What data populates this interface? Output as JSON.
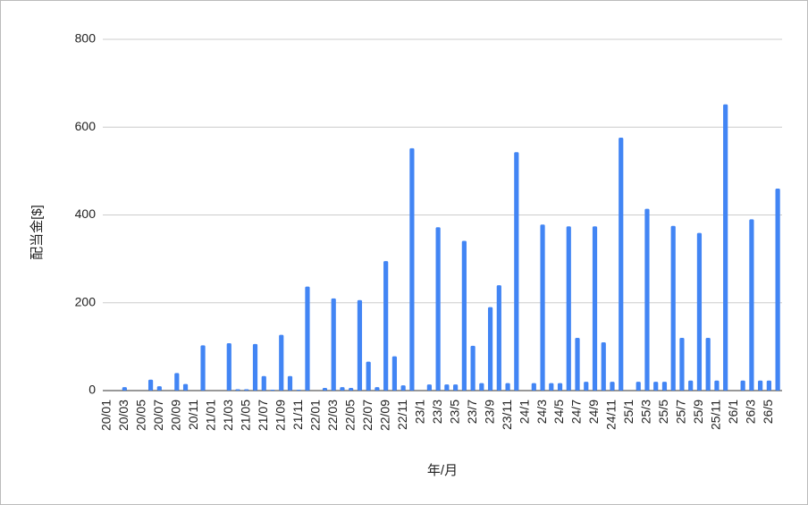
{
  "chart_data": {
    "type": "bar",
    "y_label": "配当金[$]",
    "x_label": "年/月",
    "color": "#4285f4",
    "grid": true,
    "ylim": [
      0,
      800
    ],
    "yticks": [
      0,
      200,
      400,
      600,
      800
    ],
    "categories": [
      "20/01",
      null,
      "20/03",
      null,
      "20/05",
      null,
      "20/07",
      null,
      "20/09",
      null,
      "20/11",
      null,
      "21/01",
      null,
      "21/03",
      null,
      "21/05",
      null,
      "21/07",
      null,
      "21/09",
      null,
      "21/11",
      null,
      "22/01",
      null,
      "22/03",
      null,
      "22/05",
      null,
      "22/07",
      null,
      "22/09",
      null,
      "22/11",
      null,
      "23/1",
      null,
      "23/3",
      null,
      "23/5",
      null,
      "23/7",
      null,
      "23/9",
      null,
      "23/11",
      null,
      "24/1",
      null,
      "24/3",
      null,
      "24/5",
      null,
      "24/7",
      null,
      "24/9",
      null,
      "24/11",
      null,
      "25/1",
      null,
      "25/3",
      null,
      "25/5",
      null,
      "25/7",
      null,
      "25/9",
      null,
      "25/11",
      null,
      "26/1",
      null,
      "26/3",
      null,
      "26/5",
      null
    ],
    "values": [
      0,
      0,
      8,
      0,
      0,
      25,
      10,
      0,
      40,
      15,
      0,
      103,
      0,
      0,
      108,
      3,
      3,
      106,
      33,
      2,
      127,
      33,
      2,
      237,
      0,
      6,
      210,
      8,
      6,
      206,
      66,
      8,
      295,
      78,
      12,
      552,
      0,
      14,
      372,
      14,
      14,
      341,
      102,
      17,
      190,
      240,
      17,
      543,
      0,
      17,
      378,
      17,
      17,
      374,
      120,
      20,
      374,
      110,
      20,
      576,
      0,
      20,
      414,
      20,
      20,
      375,
      120,
      23,
      359,
      120,
      23,
      652,
      0,
      23,
      390,
      23,
      23,
      460
    ]
  }
}
